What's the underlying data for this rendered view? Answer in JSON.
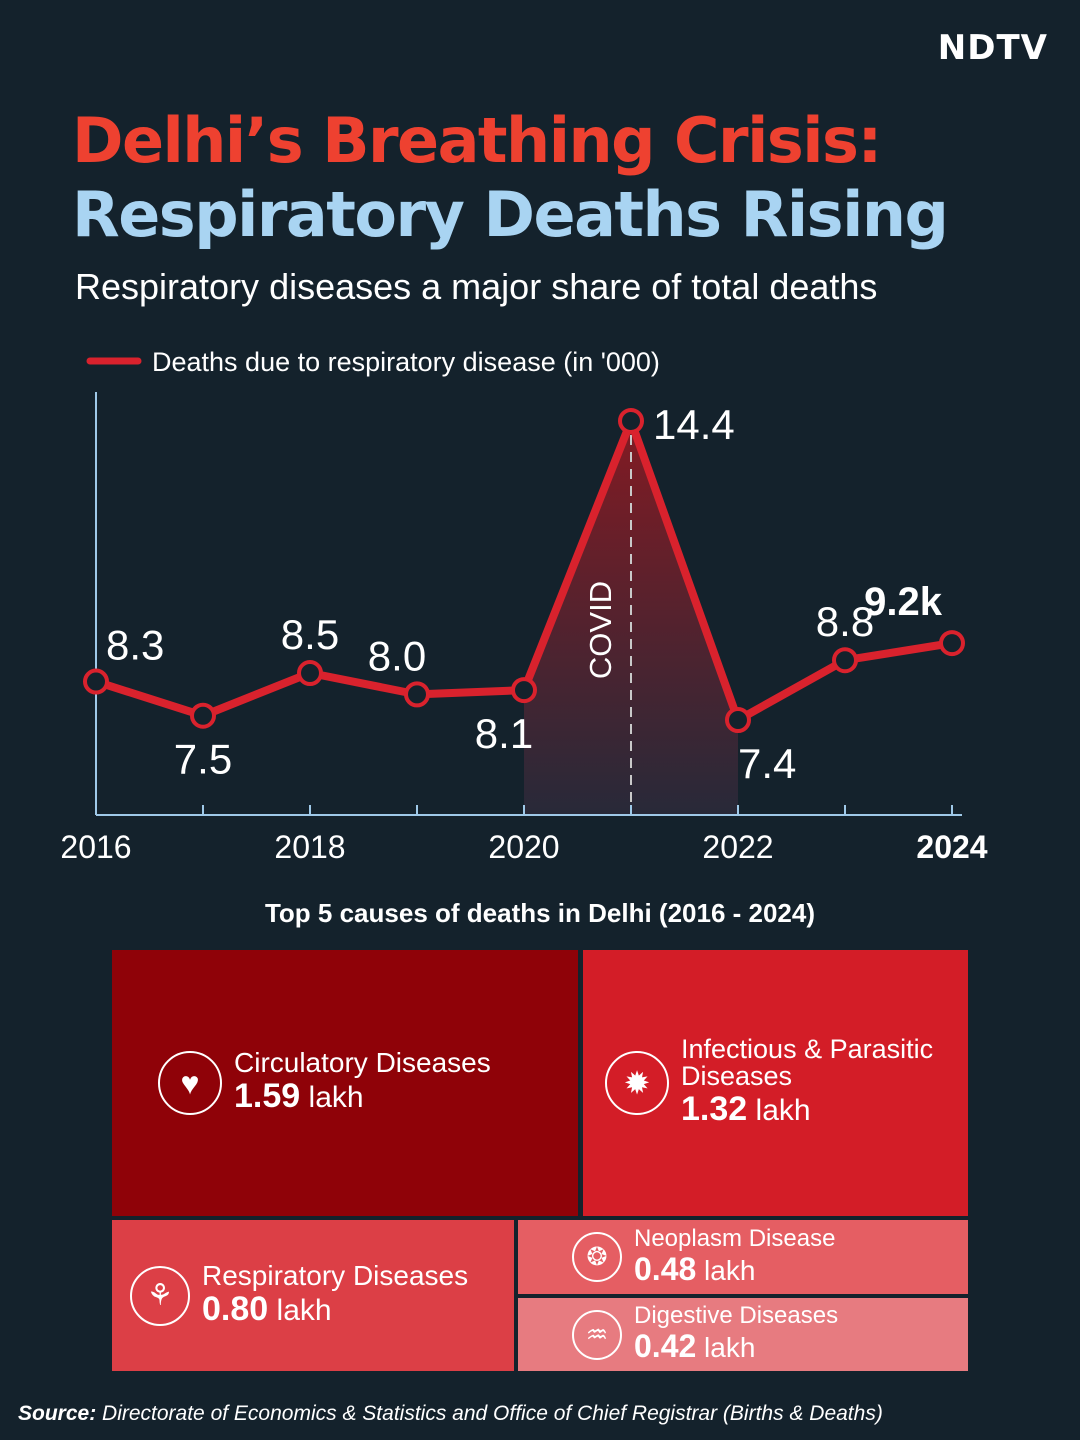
{
  "brand": {
    "logo": "NDTV"
  },
  "header": {
    "title_line1": "Delhi’s Breathing Crisis:",
    "title_line2": "Respiratory Deaths Rising",
    "subtitle": "Respiratory diseases a major share of total deaths"
  },
  "colors": {
    "background": "#14222c",
    "accent_red": "#e4252d",
    "title_red": "#ee4130",
    "title_blue": "#a9d4f2",
    "line": "#d9222d"
  },
  "chart_data": [
    {
      "type": "line",
      "legend": "Deaths due to respiratory disease (in '000)",
      "legend_position": "top-left",
      "x": [
        2016,
        2017,
        2018,
        2019,
        2020,
        2021,
        2022,
        2023,
        2024
      ],
      "series": [
        {
          "name": "Deaths due to respiratory disease (in '000)",
          "values": [
            8.3,
            7.5,
            8.5,
            8.0,
            8.1,
            14.4,
            7.4,
            8.8,
            9.2
          ],
          "labels": [
            "8.3",
            "7.5",
            "8.5",
            "8.0",
            "8.1",
            "14.4",
            "7.4",
            "8.8",
            "9.2k"
          ]
        }
      ],
      "x_tick_labels": [
        "2016",
        "2018",
        "2020",
        "2022",
        "2024"
      ],
      "x_range": [
        2016,
        2024
      ],
      "annotation": {
        "text": "COVID",
        "x": 2021,
        "shaded_range": [
          2020,
          2022
        ]
      },
      "grid": false
    },
    {
      "type": "treemap",
      "title": "Top 5 causes of deaths in Delhi (2016 - 2024)",
      "unit": "lakh",
      "items": [
        {
          "name": "Circulatory Diseases",
          "value": 1.59,
          "value_label": "1.59",
          "unit": "lakh",
          "icon": "heart-icon",
          "color": "#8f0208"
        },
        {
          "name": "Infectious & Parasitic Diseases",
          "value": 1.32,
          "value_label": "1.32",
          "unit": "lakh",
          "icon": "virus-icon",
          "color": "#d31d27"
        },
        {
          "name": "Respiratory Diseases",
          "value": 0.8,
          "value_label": "0.80",
          "unit": "lakh",
          "icon": "lungs-icon",
          "color": "#dc3f46"
        },
        {
          "name": "Neoplasm Disease",
          "value": 0.48,
          "value_label": "0.48",
          "unit": "lakh",
          "icon": "neoplasm-icon",
          "color": "#e55e63"
        },
        {
          "name": "Digestive Diseases",
          "value": 0.42,
          "value_label": "0.42",
          "unit": "lakh",
          "icon": "intestine-icon",
          "color": "#e77b80"
        }
      ]
    }
  ],
  "source": {
    "label": "Source:",
    "text": "Directorate of Economics & Statistics and Office of Chief Registrar (Births & Deaths)"
  }
}
